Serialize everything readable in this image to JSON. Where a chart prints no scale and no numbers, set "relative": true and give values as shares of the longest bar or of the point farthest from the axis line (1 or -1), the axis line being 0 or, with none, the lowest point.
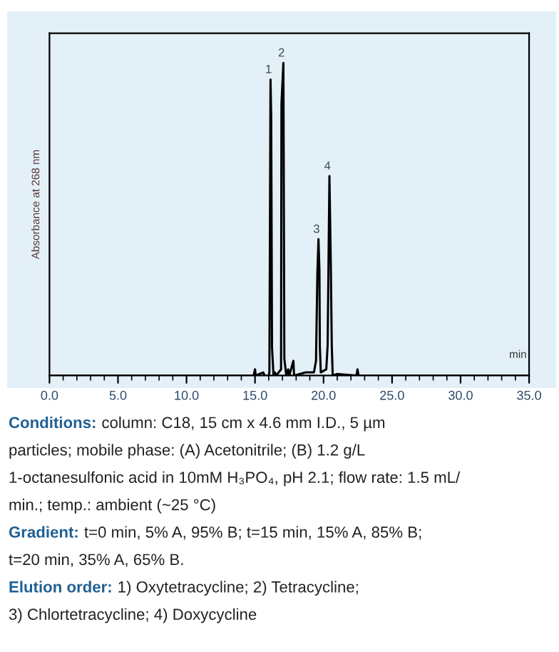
{
  "chart_data": {
    "type": "line",
    "relative": true,
    "ylabel": "Absorbance at 268 nm",
    "xlabel": "min",
    "xlim": [
      0,
      35
    ],
    "xticks": [
      {
        "value": 0,
        "label": "0.0"
      },
      {
        "value": 5,
        "label": "5.0"
      },
      {
        "value": 10,
        "label": "10.0"
      },
      {
        "value": 15,
        "label": "15.0"
      },
      {
        "value": 20,
        "label": "20.0"
      },
      {
        "value": 25,
        "label": "25.0"
      },
      {
        "value": 30,
        "label": "30.0"
      },
      {
        "value": 35,
        "label": "35.0"
      }
    ],
    "grid": false,
    "legend": false,
    "marker": "none",
    "line_style": "solid",
    "series": [
      {
        "color": "#000000",
        "x": [
          0,
          14.9,
          15.0,
          15.05,
          15.6,
          15.7,
          16.0,
          16.05,
          16.13,
          16.18,
          16.24,
          16.35,
          16.45,
          16.55,
          16.9,
          16.93,
          17.07,
          17.14,
          17.28,
          17.42,
          17.5,
          17.8,
          17.85,
          18.7,
          19.3,
          19.45,
          19.55,
          19.63,
          19.7,
          19.73,
          19.8,
          20.0,
          20.2,
          20.3,
          20.43,
          20.53,
          20.6,
          20.67,
          21.0,
          22.4,
          22.48,
          22.55,
          35
        ],
        "values": [
          0,
          0,
          0.02,
          0,
          0.01,
          0,
          0,
          0.01,
          0.947,
          0.83,
          0.09,
          0,
          0.01,
          0,
          0.02,
          0.87,
          1.0,
          0.054,
          0,
          0.02,
          0,
          0.047,
          0,
          0.01,
          0.01,
          0.047,
          0.326,
          0.436,
          0.334,
          0.093,
          0.01,
          0.015,
          0.02,
          0.098,
          0.638,
          0.354,
          0.098,
          0,
          0.005,
          0,
          0.02,
          0,
          0
        ]
      }
    ],
    "annotations": [
      {
        "text": "1",
        "x": 16.13,
        "y": 0.947
      },
      {
        "text": "2",
        "x": 17.07,
        "y": 1.0
      },
      {
        "text": "3",
        "x": 19.63,
        "y": 0.436
      },
      {
        "text": "4",
        "x": 20.43,
        "y": 0.638
      },
      "Conditions: column: C18, 15 cm x 4.6 mm I.D., 5 µm\nparticles; mobile phase: (A) Acetonitrile; (B) 1.2 g/L\n1-octanesulfonic acid in 10mM H₃PO₄, pH 2.1; flow rate: 1.5 mL/\nmin.; temp.: ambient (~25 °C)",
      "Gradient: t=0 min, 5% A, 95% B; t=15 min, 15% A, 85% B;\nt=20 min, 35% A, 65% B.",
      "Elution order: 1) Oxytetracycline; 2) Tetracycline;\n3) Chlortetracycline; 4) Doxycycline"
    ]
  }
}
